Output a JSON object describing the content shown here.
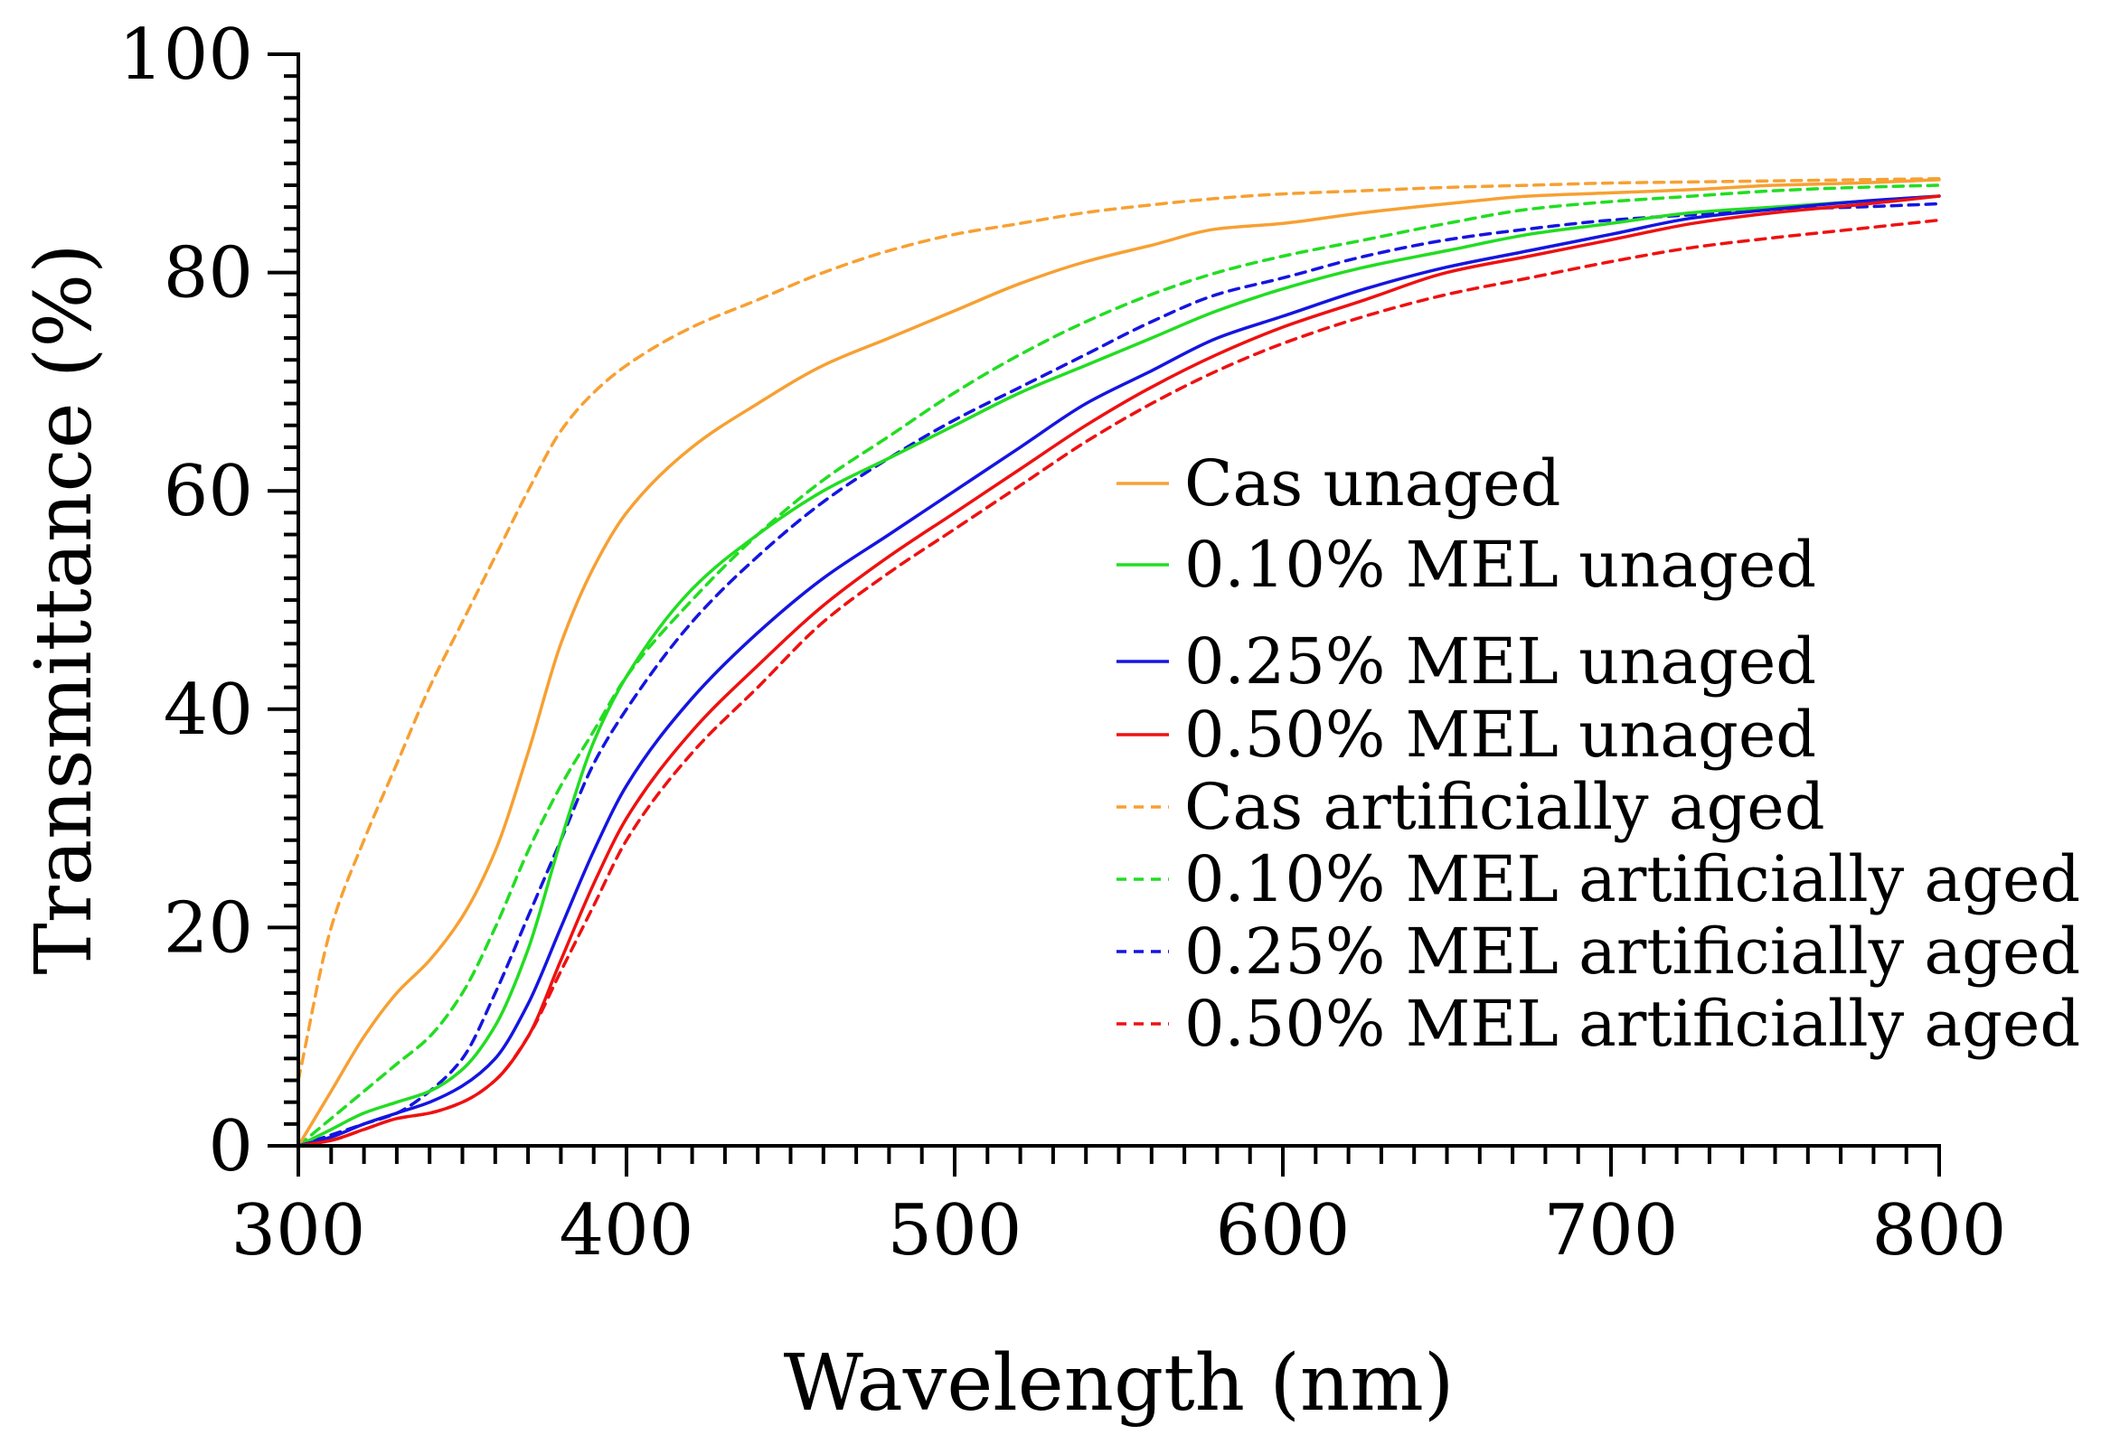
{
  "chart_data": {
    "type": "line",
    "title": "",
    "xlabel": "Wavelength (nm)",
    "ylabel": "Transmittance (%)",
    "xlim": [
      300,
      800
    ],
    "ylim": [
      0,
      100
    ],
    "x_ticks": [
      300,
      400,
      500,
      600,
      700,
      800
    ],
    "y_ticks": [
      0,
      20,
      40,
      60,
      80,
      100
    ],
    "x_tick_labels": [
      "300",
      "400",
      "500",
      "600",
      "700",
      "800"
    ],
    "y_tick_labels": [
      "0",
      "20",
      "40",
      "60",
      "80",
      "100"
    ],
    "legend_position": "center-right",
    "x": [
      300,
      310,
      320,
      330,
      340,
      350,
      360,
      370,
      380,
      390,
      400,
      420,
      440,
      460,
      480,
      500,
      520,
      540,
      560,
      580,
      600,
      625,
      650,
      675,
      700,
      725,
      750,
      775,
      800
    ],
    "series": [
      {
        "name": "Cas unaged",
        "color": "#F7A033",
        "dash": "solid",
        "values": [
          0,
          5,
          10,
          14,
          17,
          21,
          27,
          36,
          46,
          53,
          58,
          64,
          68,
          71.5,
          74,
          76.5,
          79,
          81,
          82.5,
          84,
          84.5,
          85.5,
          86.3,
          87,
          87.3,
          87.6,
          88,
          88.2,
          88.5
        ]
      },
      {
        "name": "0.10% MEL unaged",
        "color": "#22DD22",
        "dash": "solid",
        "values": [
          0,
          1.5,
          3,
          4,
          5,
          7,
          11,
          18,
          28,
          37,
          43,
          51,
          56,
          60,
          63,
          66,
          69,
          71.5,
          74,
          76.5,
          78.5,
          80.5,
          82,
          83.5,
          84.5,
          85.5,
          86,
          86.5,
          87
        ]
      },
      {
        "name": "0.25% MEL unaged",
        "color": "#1515E0",
        "dash": "solid",
        "values": [
          0,
          0.8,
          2,
          3,
          4,
          5.5,
          8,
          13,
          20,
          27,
          33,
          41,
          47,
          52,
          56,
          60,
          64,
          68,
          71,
          74,
          76,
          78.5,
          80.5,
          82,
          83.5,
          85,
          85.8,
          86.5,
          87
        ]
      },
      {
        "name": "0.50% MEL unaged",
        "color": "#EE1111",
        "dash": "solid",
        "values": [
          0,
          0.5,
          1.5,
          2.5,
          3,
          4,
          6,
          10,
          17,
          24,
          30,
          38,
          44,
          49.5,
          54,
          58,
          62,
          66,
          69.5,
          72.5,
          75,
          77.5,
          80,
          81.5,
          83,
          84.5,
          85.5,
          86.2,
          87
        ]
      },
      {
        "name": "Cas artificially aged",
        "color": "#F7A033",
        "dash": "dashed",
        "values": [
          6,
          20,
          28,
          35,
          42,
          48,
          54,
          60,
          65.5,
          69,
          71.5,
          75,
          77.5,
          80,
          82,
          83.5,
          84.5,
          85.5,
          86.2,
          86.8,
          87.2,
          87.5,
          87.8,
          88,
          88.2,
          88.3,
          88.4,
          88.5,
          88.6
        ]
      },
      {
        "name": "0.10% MEL artificially aged",
        "color": "#22DD22",
        "dash": "dashed",
        "values": [
          0,
          2.5,
          5,
          7.5,
          10,
          14,
          20,
          27,
          33,
          38,
          43,
          50,
          56,
          61,
          65,
          69,
          72.5,
          75.5,
          78,
          80,
          81.5,
          83,
          84.5,
          85.8,
          86.5,
          87,
          87.5,
          87.8,
          88
        ]
      },
      {
        "name": "0.25% MEL artificially aged",
        "color": "#1515E0",
        "dash": "dashed",
        "values": [
          0,
          1,
          2,
          3,
          5,
          8,
          14,
          21,
          28,
          35,
          40,
          48,
          54,
          59,
          63,
          66.5,
          69.5,
          72.5,
          75.5,
          78,
          79.5,
          81.5,
          83,
          84,
          84.8,
          85.3,
          85.8,
          86,
          86.3
        ]
      },
      {
        "name": "0.50% MEL artificially aged",
        "color": "#EE1111",
        "dash": "dashed",
        "values": [
          0,
          0.5,
          1.5,
          2.5,
          3,
          4,
          6,
          10,
          16,
          22,
          28,
          36,
          42,
          48,
          52.5,
          56.5,
          60.5,
          64.5,
          68,
          71,
          73.5,
          76,
          78,
          79.5,
          81,
          82.3,
          83.2,
          84,
          84.8
        ]
      }
    ]
  }
}
